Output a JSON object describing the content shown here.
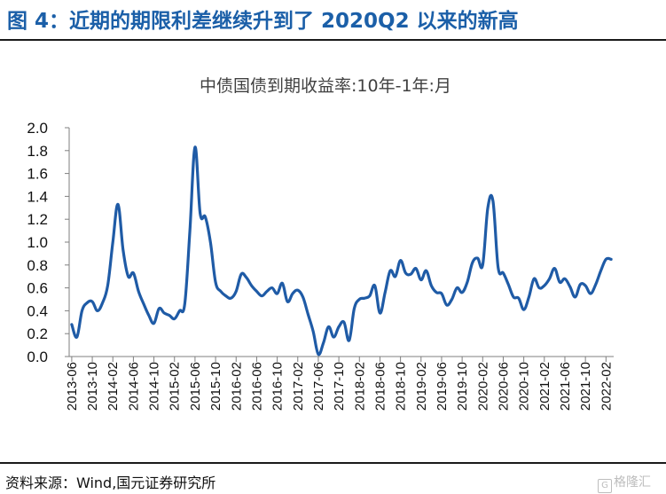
{
  "header": {
    "figure_title": "图 4：近期的期限利差继续升到了 2020Q2 以来的新高"
  },
  "footer": {
    "source": "资料来源：Wind,国元证券研究所",
    "watermark": "格隆汇"
  },
  "colors": {
    "title_blue": "#1b5fa8",
    "line": "#1f5ba6",
    "axis": "#7f7f7f"
  },
  "chart_data": {
    "type": "line",
    "title": "中债国债到期收益率:10年-1年:月",
    "xlabel": "",
    "ylabel": "",
    "ylim": [
      0,
      2.0
    ],
    "yticks": [
      "0.0",
      "0.2",
      "0.4",
      "0.6",
      "0.8",
      "1.0",
      "1.2",
      "1.4",
      "1.6",
      "1.8",
      "2.0"
    ],
    "x_tick_labels": [
      "2013-06",
      "2013-10",
      "2014-02",
      "2014-06",
      "2014-10",
      "2015-02",
      "2015-06",
      "2015-10",
      "2016-02",
      "2016-06",
      "2016-10",
      "2017-02",
      "2017-06",
      "2017-10",
      "2018-02",
      "2018-06",
      "2018-10",
      "2019-02",
      "2019-06",
      "2019-10",
      "2020-02",
      "2020-06",
      "2020-10",
      "2021-02",
      "2021-06",
      "2021-10",
      "2022-02"
    ],
    "grid": false,
    "legend": "none",
    "series": [
      {
        "x": [
          "2013-06",
          "2013-07",
          "2013-08",
          "2013-09",
          "2013-10",
          "2013-11",
          "2013-12",
          "2014-01",
          "2014-02",
          "2014-03",
          "2014-04",
          "2014-05",
          "2014-06",
          "2014-07",
          "2014-08",
          "2014-09",
          "2014-10",
          "2014-11",
          "2014-12",
          "2015-01",
          "2015-02",
          "2015-03",
          "2015-04",
          "2015-05",
          "2015-06",
          "2015-07",
          "2015-08",
          "2015-09",
          "2015-10",
          "2015-11",
          "2015-12",
          "2016-01",
          "2016-02",
          "2016-03",
          "2016-04",
          "2016-05",
          "2016-06",
          "2016-07",
          "2016-08",
          "2016-09",
          "2016-10",
          "2016-11",
          "2016-12",
          "2017-01",
          "2017-02",
          "2017-03",
          "2017-04",
          "2017-05",
          "2017-06",
          "2017-07",
          "2017-08",
          "2017-09",
          "2017-10",
          "2017-11",
          "2017-12",
          "2018-01",
          "2018-02",
          "2018-03",
          "2018-04",
          "2018-05",
          "2018-06",
          "2018-07",
          "2018-08",
          "2018-09",
          "2018-10",
          "2018-11",
          "2018-12",
          "2019-01",
          "2019-02",
          "2019-03",
          "2019-04",
          "2019-05",
          "2019-06",
          "2019-07",
          "2019-08",
          "2019-09",
          "2019-10",
          "2019-11",
          "2019-12",
          "2020-01",
          "2020-02",
          "2020-03",
          "2020-04",
          "2020-05",
          "2020-06",
          "2020-07",
          "2020-08",
          "2020-09",
          "2020-10",
          "2020-11",
          "2020-12",
          "2021-01",
          "2021-02",
          "2021-03",
          "2021-04",
          "2021-05",
          "2021-06",
          "2021-07",
          "2021-08",
          "2021-09",
          "2021-10",
          "2021-11",
          "2021-12",
          "2022-01",
          "2022-02",
          "2022-03"
        ],
        "values": [
          0.28,
          0.17,
          0.4,
          0.47,
          0.48,
          0.4,
          0.47,
          0.62,
          1.0,
          1.33,
          0.93,
          0.7,
          0.73,
          0.57,
          0.46,
          0.36,
          0.29,
          0.42,
          0.38,
          0.36,
          0.33,
          0.4,
          0.46,
          1.1,
          1.83,
          1.25,
          1.22,
          1.0,
          0.65,
          0.57,
          0.53,
          0.51,
          0.57,
          0.72,
          0.69,
          0.62,
          0.57,
          0.53,
          0.57,
          0.6,
          0.55,
          0.64,
          0.48,
          0.55,
          0.58,
          0.52,
          0.37,
          0.22,
          0.02,
          0.12,
          0.26,
          0.17,
          0.26,
          0.3,
          0.14,
          0.42,
          0.5,
          0.51,
          0.53,
          0.62,
          0.38,
          0.56,
          0.75,
          0.7,
          0.84,
          0.73,
          0.72,
          0.77,
          0.67,
          0.75,
          0.62,
          0.56,
          0.55,
          0.45,
          0.5,
          0.6,
          0.56,
          0.65,
          0.82,
          0.86,
          0.8,
          1.3,
          1.36,
          0.78,
          0.73,
          0.63,
          0.52,
          0.51,
          0.41,
          0.52,
          0.68,
          0.6,
          0.62,
          0.68,
          0.77,
          0.65,
          0.68,
          0.61,
          0.52,
          0.63,
          0.62,
          0.55,
          0.63,
          0.75,
          0.85,
          0.85
        ]
      }
    ]
  }
}
